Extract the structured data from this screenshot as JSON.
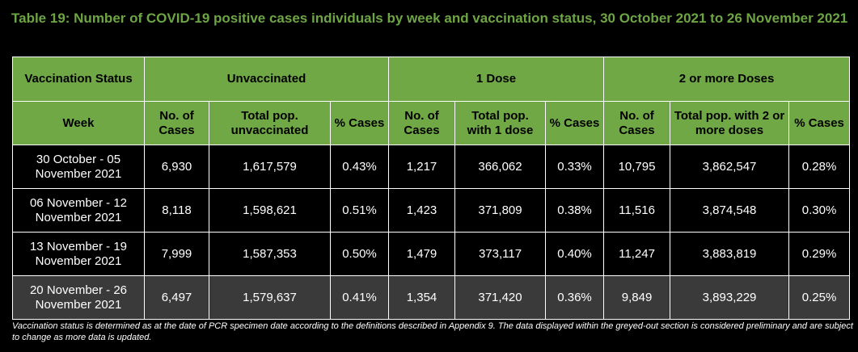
{
  "title": "Table 19: Number of COVID-19 positive cases individuals by week and vaccination status, 30 October 2021 to 26 November 2021",
  "header": {
    "vaccination_status": "Vaccination Status",
    "groups": [
      "Unvaccinated",
      "1 Dose",
      "2 or more Doses"
    ],
    "week": "Week",
    "columns": [
      "No. of Cases",
      "Total pop. unvaccinated",
      "% Cases",
      "No. of Cases",
      "Total pop. with 1 dose",
      "% Cases",
      "No. of Cases",
      "Total pop. with 2 or more doses",
      "% Cases"
    ]
  },
  "rows": [
    {
      "week": "30 October - 05 November 2021",
      "cells": [
        "6,930",
        "1,617,579",
        "0.43%",
        "1,217",
        "366,062",
        "0.33%",
        "10,795",
        "3,862,547",
        "0.28%"
      ]
    },
    {
      "week": "06 November - 12 November 2021",
      "cells": [
        "8,118",
        "1,598,621",
        "0.51%",
        "1,423",
        "371,809",
        "0.38%",
        "11,516",
        "3,874,548",
        "0.30%"
      ]
    },
    {
      "week": "13 November - 19 November 2021",
      "cells": [
        "7,999",
        "1,587,353",
        "0.50%",
        "1,479",
        "373,117",
        "0.40%",
        "11,247",
        "3,883,819",
        "0.29%"
      ]
    },
    {
      "week": "20 November - 26 November 2021",
      "cells": [
        "6,497",
        "1,579,637",
        "0.41%",
        "1,354",
        "371,420",
        "0.36%",
        "9,849",
        "3,893,229",
        "0.25%"
      ]
    }
  ],
  "footnote": "Vaccination status is determined as at the date of PCR specimen date according to the definitions described in Appendix 9. The data displayed within the greyed-out section is considered preliminary and are subject to change as more data is updated.",
  "colors": {
    "header_green": "#70a846",
    "title_green": "#6da544",
    "prelim_grey": "#3a3a3a",
    "background": "#000000"
  }
}
